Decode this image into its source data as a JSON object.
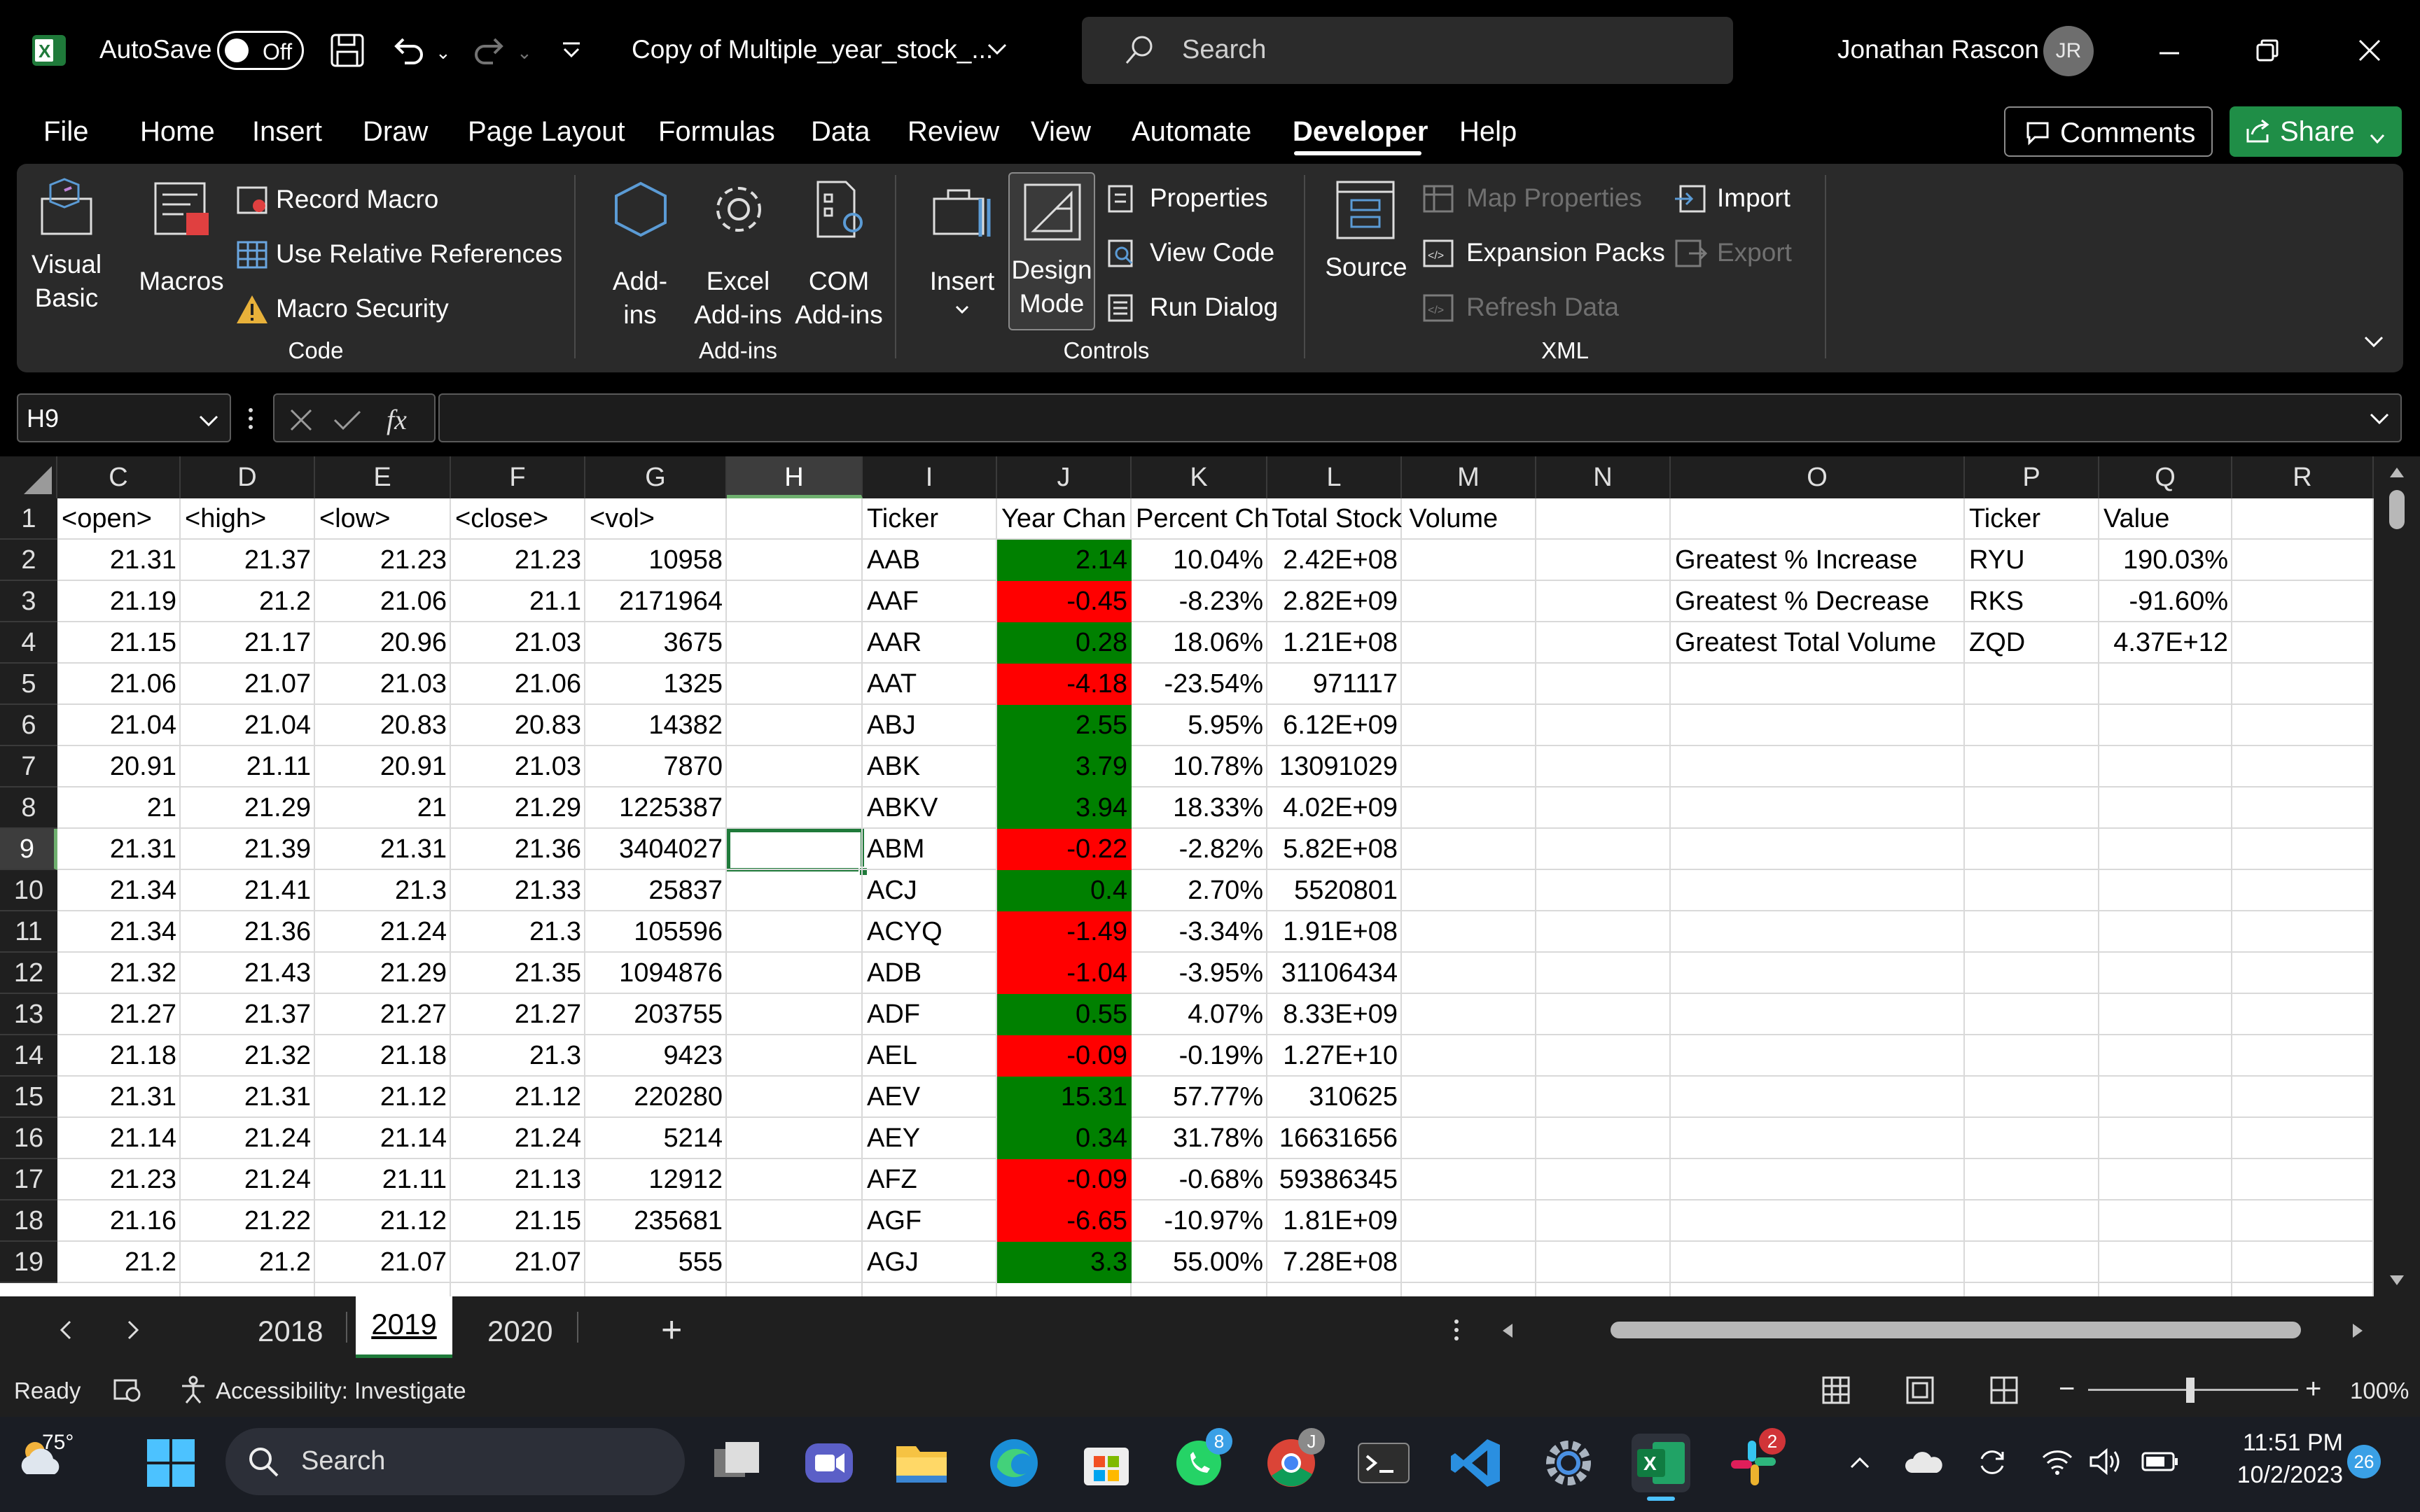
{
  "titlebar": {
    "app_icon": "excel-icon",
    "autosave_label": "AutoSave",
    "autosave_state": "Off",
    "document_title": "Copy of Multiple_year_stock_...",
    "search_placeholder": "Search",
    "user_name": "Jonathan Rascon",
    "user_initials": "JR"
  },
  "menu": {
    "items": [
      "File",
      "Home",
      "Insert",
      "Draw",
      "Page Layout",
      "Formulas",
      "Data",
      "Review",
      "View",
      "Automate",
      "Developer",
      "Help"
    ],
    "active": "Developer",
    "comments_label": "Comments",
    "share_label": "Share"
  },
  "ribbon": {
    "code": {
      "group_label": "Code",
      "visual_basic_line1": "Visual",
      "visual_basic_line2": "Basic",
      "macros": "Macros",
      "record_macro": "Record Macro",
      "use_relative_references": "Use Relative References",
      "macro_security": "Macro Security"
    },
    "addins": {
      "group_label": "Add-ins",
      "addins_line1": "Add-",
      "addins_line2": "ins",
      "excel_addins_line1": "Excel",
      "excel_addins_line2": "Add-ins",
      "com_addins_line1": "COM",
      "com_addins_line2": "Add-ins"
    },
    "controls": {
      "group_label": "Controls",
      "insert": "Insert",
      "design_mode_line1": "Design",
      "design_mode_line2": "Mode",
      "properties": "Properties",
      "view_code": "View Code",
      "run_dialog": "Run Dialog"
    },
    "xml": {
      "group_label": "XML",
      "source": "Source",
      "map_properties": "Map Properties",
      "expansion_packs": "Expansion Packs",
      "refresh_data": "Refresh Data",
      "import": "Import",
      "export": "Export"
    }
  },
  "formula_bar": {
    "name_box": "H9",
    "fx_label": "fx",
    "formula": ""
  },
  "sheet": {
    "columns": [
      "C",
      "D",
      "E",
      "F",
      "G",
      "H",
      "I",
      "J",
      "K",
      "L",
      "M",
      "N",
      "O",
      "P",
      "Q",
      "R"
    ],
    "selected_column": "H",
    "selected_row": "9",
    "row_numbers": [
      "1",
      "2",
      "3",
      "4",
      "5",
      "6",
      "7",
      "8",
      "9",
      "10",
      "11",
      "12",
      "13",
      "14",
      "15",
      "16",
      "17",
      "18",
      "19"
    ],
    "header_row": {
      "C": "<open>",
      "D": "<high>",
      "E": "<low>",
      "F": "<close>",
      "G": "<vol>",
      "I": "Ticker",
      "J": "Year Chan",
      "K": "Percent Ch",
      "L": "Total Stock Volume",
      "P": "Ticker",
      "Q": "Value"
    },
    "rows": [
      {
        "C": "21.31",
        "D": "21.37",
        "E": "21.23",
        "F": "21.23",
        "G": "10958",
        "I": "AAB",
        "J": "2.14",
        "K": "10.04%",
        "L": "2.42E+08",
        "pos": true
      },
      {
        "C": "21.19",
        "D": "21.2",
        "E": "21.06",
        "F": "21.1",
        "G": "2171964",
        "I": "AAF",
        "J": "-0.45",
        "K": "-8.23%",
        "L": "2.82E+09",
        "pos": false
      },
      {
        "C": "21.15",
        "D": "21.17",
        "E": "20.96",
        "F": "21.03",
        "G": "3675",
        "I": "AAR",
        "J": "0.28",
        "K": "18.06%",
        "L": "1.21E+08",
        "pos": true
      },
      {
        "C": "21.06",
        "D": "21.07",
        "E": "21.03",
        "F": "21.06",
        "G": "1325",
        "I": "AAT",
        "J": "-4.18",
        "K": "-23.54%",
        "L": "971117",
        "pos": false
      },
      {
        "C": "21.04",
        "D": "21.04",
        "E": "20.83",
        "F": "20.83",
        "G": "14382",
        "I": "ABJ",
        "J": "2.55",
        "K": "5.95%",
        "L": "6.12E+09",
        "pos": true
      },
      {
        "C": "20.91",
        "D": "21.11",
        "E": "20.91",
        "F": "21.03",
        "G": "7870",
        "I": "ABK",
        "J": "3.79",
        "K": "10.78%",
        "L": "13091029",
        "pos": true
      },
      {
        "C": "21",
        "D": "21.29",
        "E": "21",
        "F": "21.29",
        "G": "1225387",
        "I": "ABKV",
        "J": "3.94",
        "K": "18.33%",
        "L": "4.02E+09",
        "pos": true
      },
      {
        "C": "21.31",
        "D": "21.39",
        "E": "21.31",
        "F": "21.36",
        "G": "3404027",
        "I": "ABM",
        "J": "-0.22",
        "K": "-2.82%",
        "L": "5.82E+08",
        "pos": false
      },
      {
        "C": "21.34",
        "D": "21.41",
        "E": "21.3",
        "F": "21.33",
        "G": "25837",
        "I": "ACJ",
        "J": "0.4",
        "K": "2.70%",
        "L": "5520801",
        "pos": true
      },
      {
        "C": "21.34",
        "D": "21.36",
        "E": "21.24",
        "F": "21.3",
        "G": "105596",
        "I": "ACYQ",
        "J": "-1.49",
        "K": "-3.34%",
        "L": "1.91E+08",
        "pos": false
      },
      {
        "C": "21.32",
        "D": "21.43",
        "E": "21.29",
        "F": "21.35",
        "G": "1094876",
        "I": "ADB",
        "J": "-1.04",
        "K": "-3.95%",
        "L": "31106434",
        "pos": false
      },
      {
        "C": "21.27",
        "D": "21.37",
        "E": "21.27",
        "F": "21.27",
        "G": "203755",
        "I": "ADF",
        "J": "0.55",
        "K": "4.07%",
        "L": "8.33E+09",
        "pos": true
      },
      {
        "C": "21.18",
        "D": "21.32",
        "E": "21.18",
        "F": "21.3",
        "G": "9423",
        "I": "AEL",
        "J": "-0.09",
        "K": "-0.19%",
        "L": "1.27E+10",
        "pos": false
      },
      {
        "C": "21.31",
        "D": "21.31",
        "E": "21.12",
        "F": "21.12",
        "G": "220280",
        "I": "AEV",
        "J": "15.31",
        "K": "57.77%",
        "L": "310625",
        "pos": true
      },
      {
        "C": "21.14",
        "D": "21.24",
        "E": "21.14",
        "F": "21.24",
        "G": "5214",
        "I": "AEY",
        "J": "0.34",
        "K": "31.78%",
        "L": "16631656",
        "pos": true
      },
      {
        "C": "21.23",
        "D": "21.24",
        "E": "21.11",
        "F": "21.13",
        "G": "12912",
        "I": "AFZ",
        "J": "-0.09",
        "K": "-0.68%",
        "L": "59386345",
        "pos": false
      },
      {
        "C": "21.16",
        "D": "21.22",
        "E": "21.12",
        "F": "21.15",
        "G": "235681",
        "I": "AGF",
        "J": "-6.65",
        "K": "-10.97%",
        "L": "1.81E+09",
        "pos": false
      },
      {
        "C": "21.2",
        "D": "21.2",
        "E": "21.07",
        "F": "21.07",
        "G": "555",
        "I": "AGJ",
        "J": "3.3",
        "K": "55.00%",
        "L": "7.28E+08",
        "pos": true
      }
    ],
    "summary": [
      {
        "label": "Greatest % Increase",
        "ticker": "RYU",
        "value": "190.03%"
      },
      {
        "label": "Greatest % Decrease",
        "ticker": "RKS",
        "value": "-91.60%"
      },
      {
        "label": "Greatest Total Volume",
        "ticker": "ZQD",
        "value": "4.37E+12"
      }
    ],
    "positive_color": "#008000",
    "negative_color": "#ff0000"
  },
  "sheet_tabs": {
    "tabs": [
      "2018",
      "2019",
      "2020"
    ],
    "active": "2019",
    "add_label": "+"
  },
  "status_bar": {
    "ready": "Ready",
    "accessibility": "Accessibility: Investigate",
    "zoom_minus": "−",
    "zoom_plus": "+",
    "zoom": "100%"
  },
  "taskbar": {
    "weather_temp": "75°",
    "search_placeholder": "Search",
    "whatsapp_badge": "8",
    "slack_badge": "2",
    "chrome_badge": "J",
    "time": "11:51 PM",
    "date": "10/2/2023",
    "notifications_count": "26"
  }
}
